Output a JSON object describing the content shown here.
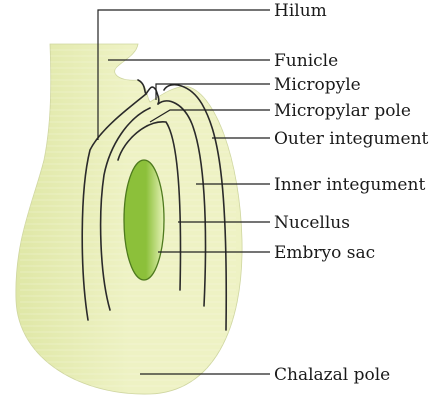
{
  "diagram": {
    "labels": {
      "hilum": "Hilum",
      "funicle": "Funicle",
      "micropyle": "Micropyle",
      "micropylar_pole": "Micropylar pole",
      "outer_integument": "Outer integument",
      "inner_integument": "Inner integument",
      "nucellus": "Nucellus",
      "embryo_sac": "Embryo sac",
      "chalazal_pole": "Chalazal pole"
    },
    "colors": {
      "ovule_fill": "#eef2c4",
      "ovule_fill_dark": "#dfe7a6",
      "embryo_sac_light": "#e6f2b8",
      "embryo_sac_dark": "#8cc03a",
      "lines": "#222222"
    }
  }
}
